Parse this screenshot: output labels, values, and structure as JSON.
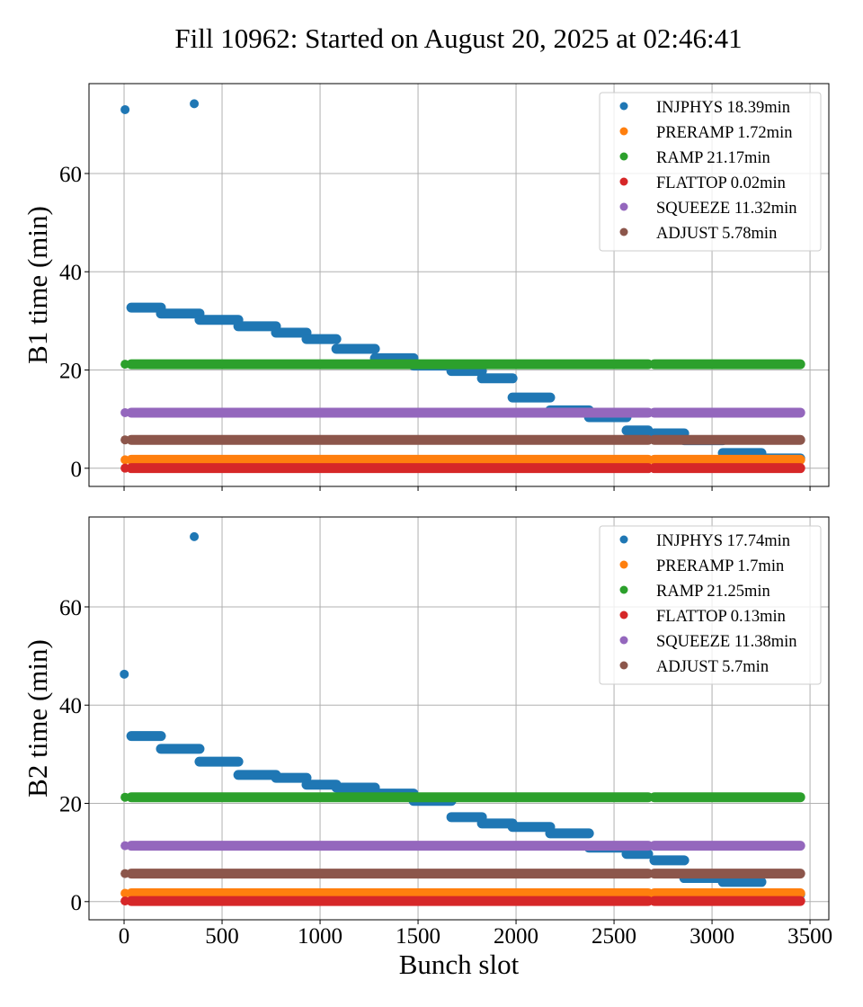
{
  "figure": {
    "title": "Fill 10962: Started on August 20, 2025 at 02:46:41"
  },
  "chart_data": [
    {
      "type": "scatter",
      "panel": "B1",
      "title": "Fill 10962: Started on August 20, 2025 at 02:46:41",
      "xlabel": "",
      "ylabel": "B1 time (min)",
      "xlim": [
        -179,
        3596
      ],
      "ylim": [
        -3.7,
        78.3
      ],
      "xticks": [
        0,
        500,
        1000,
        1500,
        2000,
        2500,
        3000,
        3500
      ],
      "xtick_labels_visible": false,
      "yticks": [
        0,
        20,
        40,
        60
      ],
      "ytick_labels": [
        "0",
        "20",
        "40",
        "60"
      ],
      "grid": true,
      "legend_position": "top-right",
      "series": [
        {
          "name": "INJPHYS",
          "label": "INJPHYS 18.39min",
          "color": "#1f77b4",
          "points": [
            [
              5,
              73.0
            ],
            [
              358,
              74.2
            ]
          ],
          "segments": [
            [
              37,
              188,
              32.7
            ],
            [
              188,
              385,
              31.5
            ],
            [
              385,
              583,
              30.2
            ],
            [
              583,
              775,
              28.9
            ],
            [
              775,
              931,
              27.6
            ],
            [
              931,
              1083,
              26.3
            ],
            [
              1083,
              1280,
              24.3
            ],
            [
              1280,
              1477,
              22.4
            ],
            [
              1477,
              1670,
              20.9
            ],
            [
              1670,
              1826,
              19.8
            ],
            [
              1826,
              1982,
              18.3
            ],
            [
              1982,
              2174,
              14.4
            ],
            [
              2174,
              2372,
              11.8
            ],
            [
              2372,
              2564,
              10.4
            ],
            [
              2564,
              2674,
              7.7
            ],
            [
              2706,
              2858,
              7.1
            ],
            [
              2858,
              3055,
              5.7
            ],
            [
              3055,
              3252,
              3.1
            ],
            [
              3252,
              3450,
              2.0
            ]
          ]
        },
        {
          "name": "PRERAMP",
          "label": "PRERAMP 1.72min",
          "color": "#ff7f0e",
          "points": [
            [
              5,
              1.72
            ]
          ],
          "segments": [
            [
              37,
              2674,
              1.72
            ],
            [
              2706,
              3450,
              1.72
            ]
          ]
        },
        {
          "name": "RAMP",
          "label": "RAMP 21.17min",
          "color": "#2ca02c",
          "points": [
            [
              5,
              21.17
            ]
          ],
          "segments": [
            [
              37,
              2674,
              21.17
            ],
            [
              2706,
              3450,
              21.17
            ]
          ]
        },
        {
          "name": "FLATTOP",
          "label": "FLATTOP 0.02min",
          "color": "#d62728",
          "points": [
            [
              5,
              0.02
            ]
          ],
          "segments": [
            [
              37,
              2674,
              0.02
            ],
            [
              2706,
              3450,
              0.02
            ]
          ]
        },
        {
          "name": "SQUEEZE",
          "label": "SQUEEZE 11.32min",
          "color": "#9467bd",
          "points": [
            [
              5,
              11.32
            ]
          ],
          "segments": [
            [
              37,
              2674,
              11.32
            ],
            [
              2706,
              3450,
              11.32
            ]
          ]
        },
        {
          "name": "ADJUST",
          "label": "ADJUST 5.78min",
          "color": "#8c564b",
          "points": [
            [
              5,
              5.78
            ]
          ],
          "segments": [
            [
              37,
              2674,
              5.78
            ],
            [
              2706,
              3450,
              5.78
            ]
          ]
        }
      ]
    },
    {
      "type": "scatter",
      "panel": "B2",
      "title": "",
      "xlabel": "Bunch slot",
      "ylabel": "B2 time (min)",
      "xlim": [
        -179,
        3596
      ],
      "ylim": [
        -3.7,
        78.3
      ],
      "xticks": [
        0,
        500,
        1000,
        1500,
        2000,
        2500,
        3000,
        3500
      ],
      "xtick_labels": [
        "0",
        "500",
        "1000",
        "1500",
        "2000",
        "2500",
        "3000",
        "3500"
      ],
      "yticks": [
        0,
        20,
        40,
        60
      ],
      "ytick_labels": [
        "0",
        "20",
        "40",
        "60"
      ],
      "grid": true,
      "legend_position": "top-right",
      "series": [
        {
          "name": "INJPHYS",
          "label": "INJPHYS 17.74min",
          "color": "#1f77b4",
          "points": [
            [
              1,
              46.3
            ],
            [
              358,
              74.3
            ]
          ],
          "segments": [
            [
              37,
              188,
              33.7
            ],
            [
              188,
              385,
              31.1
            ],
            [
              385,
              583,
              28.5
            ],
            [
              583,
              775,
              25.8
            ],
            [
              775,
              931,
              25.2
            ],
            [
              931,
              1083,
              23.8
            ],
            [
              1083,
              1280,
              23.2
            ],
            [
              1280,
              1477,
              22.0
            ],
            [
              1477,
              1670,
              20.5
            ],
            [
              1670,
              1826,
              17.2
            ],
            [
              1826,
              1982,
              15.9
            ],
            [
              1982,
              2174,
              15.2
            ],
            [
              2174,
              2372,
              13.9
            ],
            [
              2372,
              2564,
              11.0
            ],
            [
              2564,
              2674,
              9.7
            ],
            [
              2706,
              2858,
              8.4
            ],
            [
              2858,
              3055,
              4.8
            ],
            [
              3055,
              3252,
              4.0
            ],
            [
              3252,
              3450,
              1.5
            ]
          ]
        },
        {
          "name": "PRERAMP",
          "label": "PRERAMP 1.7min",
          "color": "#ff7f0e",
          "points": [
            [
              5,
              1.7
            ]
          ],
          "segments": [
            [
              37,
              2674,
              1.7
            ],
            [
              2706,
              3450,
              1.7
            ]
          ]
        },
        {
          "name": "RAMP",
          "label": "RAMP 21.25min",
          "color": "#2ca02c",
          "points": [
            [
              5,
              21.25
            ]
          ],
          "segments": [
            [
              37,
              2674,
              21.25
            ],
            [
              2706,
              3450,
              21.25
            ]
          ]
        },
        {
          "name": "FLATTOP",
          "label": "FLATTOP 0.13min",
          "color": "#d62728",
          "points": [
            [
              5,
              0.13
            ]
          ],
          "segments": [
            [
              37,
              2674,
              0.13
            ],
            [
              2706,
              3450,
              0.13
            ]
          ]
        },
        {
          "name": "SQUEEZE",
          "label": "SQUEEZE 11.38min",
          "color": "#9467bd",
          "points": [
            [
              5,
              11.38
            ]
          ],
          "segments": [
            [
              37,
              2674,
              11.38
            ],
            [
              2706,
              3450,
              11.38
            ]
          ]
        },
        {
          "name": "ADJUST",
          "label": "ADJUST 5.7min",
          "color": "#8c564b",
          "points": [
            [
              5,
              5.7
            ]
          ],
          "segments": [
            [
              37,
              2674,
              5.7
            ],
            [
              2706,
              3450,
              5.7
            ]
          ]
        }
      ]
    }
  ]
}
